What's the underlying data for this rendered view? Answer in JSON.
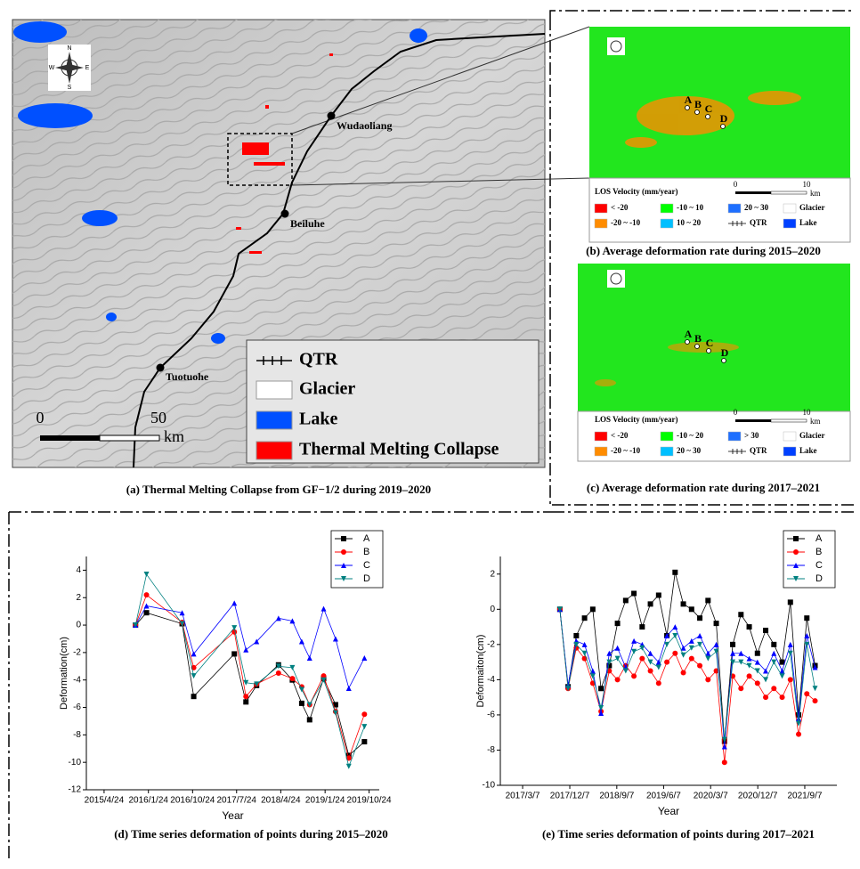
{
  "map_a": {
    "caption": "(a) Thermal Melting Collapse from GF−1/2 during 2019–2020",
    "compass": [
      "N",
      "E",
      "S",
      "W"
    ],
    "stations": [
      "Wudaoliang",
      "Beiluhe",
      "Tuotuohe"
    ],
    "scale": [
      "0",
      "50",
      "km"
    ],
    "route": "QTR",
    "legend": [
      {
        "label": "Glacier",
        "color": "#ffffff"
      },
      {
        "label": "Lake",
        "color": "#0050ff"
      },
      {
        "label": "Thermal Melting Collapse",
        "color": "#ff0000"
      }
    ]
  },
  "map_b": {
    "caption": "(b) Average deformation rate during 2015–2020",
    "legend_title": "LOS Velocity (mm/year)",
    "points": [
      "A",
      "B",
      "C",
      "D"
    ],
    "scale": [
      "0",
      "10",
      "km"
    ],
    "route": "QTR",
    "legend": [
      {
        "label": "< -20",
        "color": "#ff0000"
      },
      {
        "label": "-10 ~ 10",
        "color": "#00ff00"
      },
      {
        "label": "20 ~ 30",
        "color": "#1e6fff"
      },
      {
        "label": "Glacier",
        "color": "#ffffff"
      },
      {
        "label": "-20 ~ -10",
        "color": "#ff8c00"
      },
      {
        "label": "10 ~ 20",
        "color": "#00bfff"
      },
      {
        "label": "Lake",
        "color": "#0040ff"
      }
    ]
  },
  "map_c": {
    "caption": "(c) Average deformation rate during 2017–2021",
    "legend_title": "LOS Velocity (mm/year)",
    "points": [
      "A",
      "B",
      "C",
      "D"
    ],
    "scale": [
      "0",
      "10",
      "km"
    ],
    "route": "QTR",
    "legend": [
      {
        "label": "< -20",
        "color": "#ff0000"
      },
      {
        "label": "-10 ~ 20",
        "color": "#00ff00"
      },
      {
        "label": "> 30",
        "color": "#1e6fff"
      },
      {
        "label": "Glacier",
        "color": "#ffffff"
      },
      {
        "label": "-20 ~ -10",
        "color": "#ff8c00"
      },
      {
        "label": "20 ~ 30",
        "color": "#00bfff"
      },
      {
        "label": "Lake",
        "color": "#0040ff"
      }
    ]
  },
  "chart_data": [
    {
      "type": "line",
      "caption": "(d) Time series deformation of points during 2015–2020",
      "x_label": "Year",
      "y_label": "Deformation(cm)",
      "x": [
        "2015-11-05",
        "2016-01-12",
        "2016-08-20",
        "2016-10-31",
        "2017-07-10",
        "2017-09-20",
        "2017-11-25",
        "2018-04-10",
        "2018-07-05",
        "2018-09-01",
        "2018-10-20",
        "2019-01-15",
        "2019-03-30",
        "2019-06-20",
        "2019-09-25"
      ],
      "xlim": [
        "2015-01-04",
        "2019-12-26"
      ],
      "xticks": [
        {
          "value": "2015-04-24",
          "label": "2015/4/24"
        },
        {
          "value": "2016-01-24",
          "label": "2016/1/24"
        },
        {
          "value": "2016-10-24",
          "label": "2016/10/24"
        },
        {
          "value": "2017-07-24",
          "label": "2017/7/24"
        },
        {
          "value": "2018-04-24",
          "label": "2018/4/24"
        },
        {
          "value": "2019-01-24",
          "label": "2019/1/24"
        },
        {
          "value": "2019-10-24",
          "label": "2019/10/24"
        }
      ],
      "ylim": [
        -12,
        5
      ],
      "yticks": [
        -12,
        -10,
        -8,
        -6,
        -4,
        -2,
        0,
        2,
        4
      ],
      "series": [
        {
          "name": "A",
          "color": "#000000",
          "marker": "square",
          "values": [
            0,
            0.9,
            0.1,
            -5.2,
            -2.1,
            -5.6,
            -4.4,
            -2.9,
            -4.0,
            -5.7,
            -6.9,
            -3.9,
            -5.8,
            -9.5,
            -8.5
          ]
        },
        {
          "name": "B",
          "color": "#ff0000",
          "marker": "circle",
          "values": [
            0,
            2.2,
            0.2,
            -3.1,
            -0.5,
            -5.2,
            -4.3,
            -3.5,
            -3.9,
            -4.5,
            -5.8,
            -3.7,
            -6.3,
            -9.7,
            -6.5
          ]
        },
        {
          "name": "C",
          "color": "#0000ff",
          "marker": "triangle",
          "values": [
            0,
            1.4,
            0.9,
            -2.1,
            1.6,
            -1.8,
            -1.2,
            0.5,
            0.3,
            -1.2,
            -2.4,
            1.2,
            -1.0,
            -4.6,
            -2.4
          ]
        },
        {
          "name": "D",
          "color": "#008080",
          "marker": "triangle-down",
          "values": [
            0,
            3.7,
            0.1,
            -3.7,
            -0.2,
            -4.2,
            -4.3,
            -3.0,
            -3.1,
            -4.7,
            -5.8,
            -4.0,
            -6.4,
            -10.3,
            -7.4
          ]
        }
      ]
    },
    {
      "type": "line",
      "caption": "(e) Time series deformation of points during 2017–2021",
      "x_label": "Year",
      "y_label": "Deformaiton(cm)",
      "x": [
        "2017-10-10",
        "2017-11-27",
        "2018-01-14",
        "2018-03-03",
        "2018-04-20",
        "2018-06-07",
        "2018-07-25",
        "2018-09-11",
        "2018-10-29",
        "2018-12-16",
        "2019-02-02",
        "2019-03-22",
        "2019-05-09",
        "2019-06-26",
        "2019-08-13",
        "2019-09-30",
        "2019-11-17",
        "2020-01-04",
        "2020-02-21",
        "2020-04-09",
        "2020-05-27",
        "2020-07-14",
        "2020-08-31",
        "2020-10-18",
        "2020-12-05",
        "2021-01-22",
        "2021-03-11",
        "2021-04-28",
        "2021-06-15",
        "2021-08-02",
        "2021-09-19",
        "2021-11-06"
      ],
      "xlim": [
        "2016-10-28",
        "2022-03-13"
      ],
      "xticks": [
        {
          "value": "2017-03-07",
          "label": "2017/3/7"
        },
        {
          "value": "2017-12-07",
          "label": "2017/12/7"
        },
        {
          "value": "2018-09-07",
          "label": "2018/9/7"
        },
        {
          "value": "2019-06-07",
          "label": "2019/6/7"
        },
        {
          "value": "2020-03-07",
          "label": "2020/3/7"
        },
        {
          "value": "2020-12-07",
          "label": "2020/12/7"
        },
        {
          "value": "2021-09-07",
          "label": "2021/9/7"
        }
      ],
      "ylim": [
        -10,
        3
      ],
      "yticks": [
        -10,
        -8,
        -6,
        -4,
        -2,
        0,
        2
      ],
      "series": [
        {
          "name": "A",
          "color": "#000000",
          "marker": "square",
          "values": [
            0,
            -4.4,
            -1.5,
            -0.5,
            0.0,
            -4.5,
            -3.2,
            -0.8,
            0.5,
            0.9,
            -1.0,
            0.3,
            0.8,
            -1.5,
            2.1,
            0.3,
            0.0,
            -0.5,
            0.5,
            -0.8,
            -7.5,
            -2.0,
            -0.3,
            -1.0,
            -2.5,
            -1.2,
            -2.0,
            -3.0,
            0.4,
            -6.0,
            -0.5,
            -3.2
          ]
        },
        {
          "name": "B",
          "color": "#ff0000",
          "marker": "circle",
          "values": [
            0,
            -4.5,
            -2.2,
            -2.8,
            -4.2,
            -5.8,
            -3.5,
            -4.0,
            -3.2,
            -3.8,
            -2.8,
            -3.5,
            -4.2,
            -3.0,
            -2.5,
            -3.6,
            -2.8,
            -3.2,
            -4.0,
            -3.5,
            -8.7,
            -3.8,
            -4.5,
            -3.8,
            -4.2,
            -5.0,
            -4.5,
            -5.0,
            -4.0,
            -7.1,
            -4.8,
            -5.2
          ]
        },
        {
          "name": "C",
          "color": "#0000ff",
          "marker": "triangle",
          "values": [
            0,
            -4.3,
            -1.8,
            -2.0,
            -3.5,
            -5.9,
            -2.5,
            -2.2,
            -3.3,
            -1.8,
            -2.0,
            -2.5,
            -3.0,
            -1.5,
            -1.0,
            -2.2,
            -1.8,
            -1.5,
            -2.5,
            -2.0,
            -7.8,
            -2.5,
            -2.5,
            -2.8,
            -3.0,
            -3.5,
            -2.5,
            -3.5,
            -2.0,
            -6.2,
            -1.5,
            -3.3
          ]
        },
        {
          "name": "D",
          "color": "#008080",
          "marker": "triangle-down",
          "values": [
            0,
            -4.5,
            -2.0,
            -2.5,
            -3.8,
            -5.6,
            -3.0,
            -2.8,
            -3.5,
            -2.4,
            -2.2,
            -3.0,
            -3.3,
            -2.0,
            -1.5,
            -2.6,
            -2.2,
            -2.0,
            -2.8,
            -2.4,
            -7.4,
            -3.0,
            -3.0,
            -3.2,
            -3.5,
            -4.0,
            -3.0,
            -3.8,
            -2.5,
            -6.5,
            -2.0,
            -4.5
          ]
        }
      ]
    }
  ]
}
